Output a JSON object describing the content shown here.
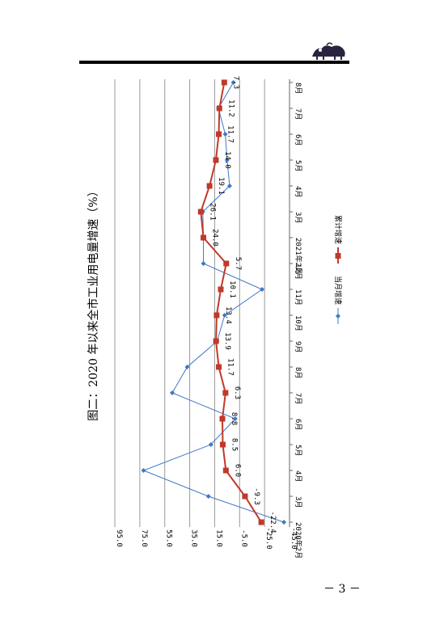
{
  "header": {
    "page_number": "－ 3 －"
  },
  "colors": {
    "monthly": "#3f78c4",
    "cumulative": "#c0392b"
  },
  "chart_data": {
    "type": "line",
    "title": "图二：2020 年以来全市工业用电量增速（%）",
    "xlabel": "",
    "ylabel": "",
    "orientation": "rotated-90-clockwise",
    "categories": [
      "2020年2月",
      "3月",
      "4月",
      "5月",
      "6月",
      "7月",
      "8月",
      "9月",
      "10月",
      "11月",
      "12月",
      "2021年2月",
      "3月",
      "4月",
      "5月",
      "6月",
      "7月",
      "8月"
    ],
    "ylim": [
      -45,
      95
    ],
    "yticks": [
      "95.0",
      "75.0",
      "55.0",
      "35.0",
      "15.0",
      "-5.0",
      "-25.0",
      "-45.0"
    ],
    "grid": true,
    "legend_position": "bottom",
    "series": [
      {
        "name": "当月增速",
        "color": "#3f78c4",
        "marker": "diamond",
        "values": [
          -40.5,
          20.0,
          72.0,
          18.0,
          -1.5,
          49.0,
          37.0,
          13.0,
          7.0,
          -23.0,
          24.0,
          24.0,
          24.5,
          3.0,
          5.0,
          6.5,
          12.0,
          0.0
        ]
      },
      {
        "name": "累计增速",
        "color": "#c0392b",
        "marker": "square",
        "values": [
          -22.4,
          -9.3,
          6.0,
          8.5,
          8.8,
          6.3,
          11.7,
          13.9,
          13.4,
          10.1,
          5.7,
          24.0,
          26.1,
          19.1,
          14.0,
          11.7,
          11.2,
          7.3
        ]
      }
    ],
    "data_labels": [
      "-22.4",
      "-9.3",
      "6.0",
      "8.5",
      "8.8",
      "6.3",
      "11.7",
      "13.9",
      "13.4",
      "10.1",
      "5.7",
      "24.0",
      "26.1",
      "19.1",
      "14.0",
      "11.7",
      "11.2",
      "7.3"
    ]
  }
}
